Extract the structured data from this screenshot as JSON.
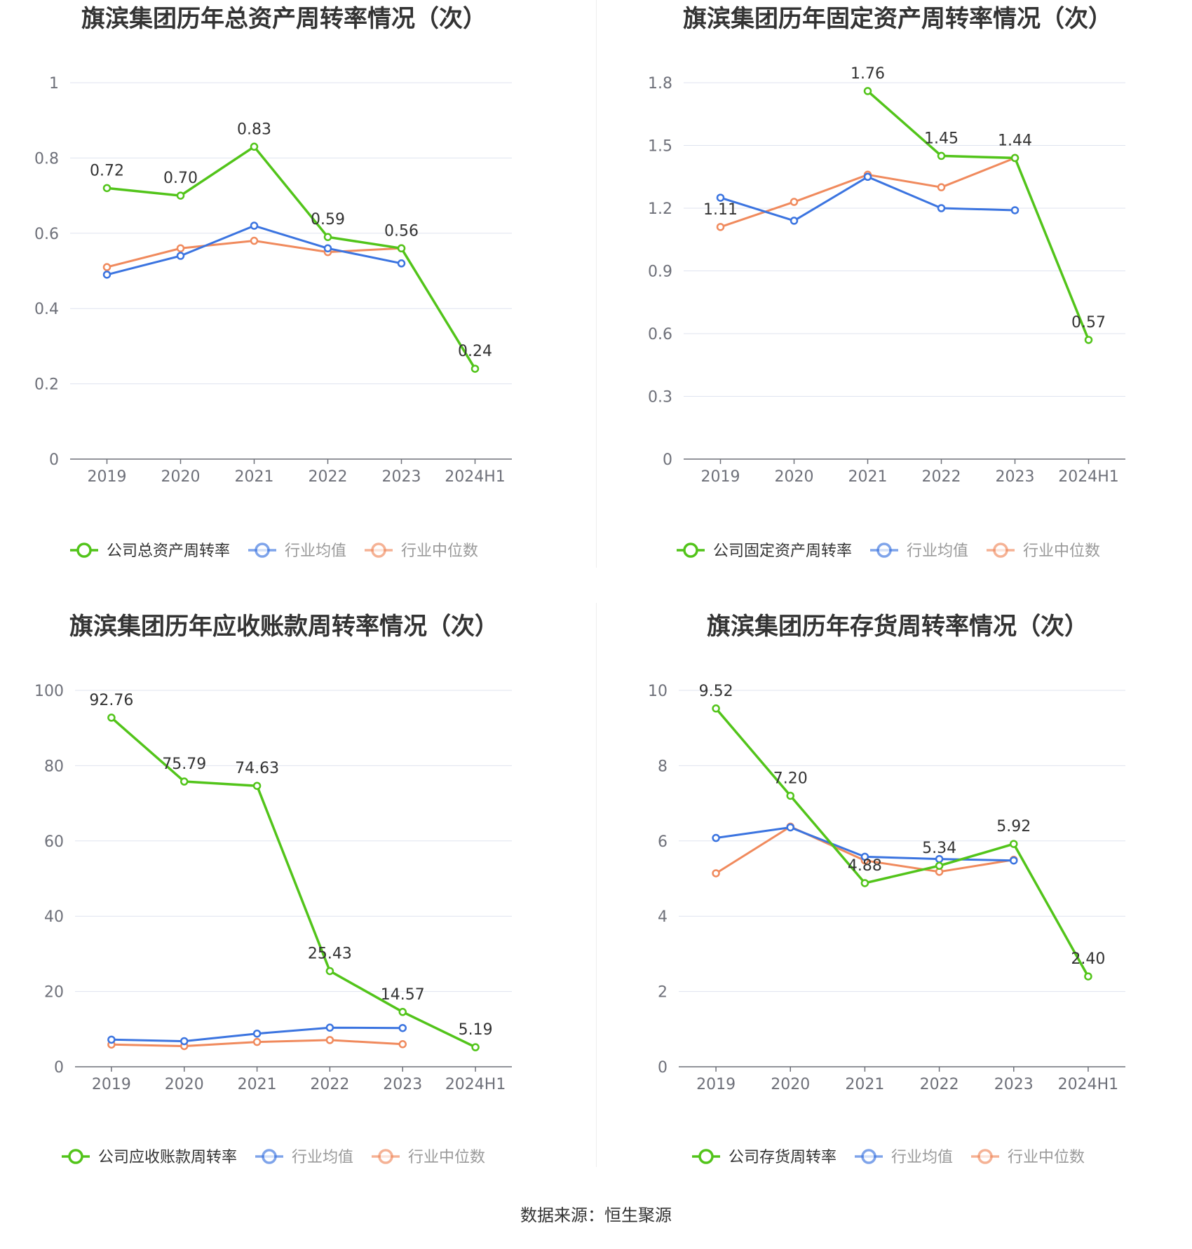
{
  "source": "数据来源：恒生聚源",
  "colors": {
    "company": "#52c41a",
    "avg": "#3b74e0",
    "median": "#f08a5d",
    "grid": "#dfe3ef",
    "axis": "#6e7079"
  },
  "chart_data": [
    {
      "type": "line",
      "title": "旗滨集团历年总资产周转率情况（次）",
      "categories": [
        "2019",
        "2020",
        "2021",
        "2022",
        "2023",
        "2024H1"
      ],
      "ylim": [
        0,
        1
      ],
      "yticks": [
        0,
        0.2,
        0.4,
        0.6,
        0.8,
        1
      ],
      "ytick_labels": [
        "0",
        "0.2",
        "0.4",
        "0.6",
        "0.8",
        "1"
      ],
      "series": [
        {
          "name": "公司总资产周转率",
          "role": "company",
          "values": [
            0.72,
            0.7,
            0.83,
            0.59,
            0.56,
            0.24
          ],
          "labels": [
            "0.72",
            "0.70",
            "0.83",
            "0.59",
            "0.56",
            "0.24"
          ]
        },
        {
          "name": "行业均值",
          "role": "avg",
          "values": [
            0.49,
            0.54,
            0.62,
            0.56,
            0.52,
            null
          ]
        },
        {
          "name": "行业中位数",
          "role": "median",
          "values": [
            0.51,
            0.56,
            0.58,
            0.55,
            0.56,
            null
          ]
        }
      ]
    },
    {
      "type": "line",
      "title": "旗滨集团历年固定资产周转率情况（次）",
      "categories": [
        "2019",
        "2020",
        "2021",
        "2022",
        "2023",
        "2024H1"
      ],
      "ylim": [
        0,
        1.8
      ],
      "yticks": [
        0,
        0.3,
        0.6,
        0.9,
        1.2,
        1.5,
        1.8
      ],
      "ytick_labels": [
        "0",
        "0.3",
        "0.6",
        "0.9",
        "1.2",
        "1.5",
        "1.8"
      ],
      "series": [
        {
          "name": "公司固定资产周转率",
          "role": "company",
          "values": [
            null,
            null,
            1.76,
            1.45,
            1.44,
            0.57
          ],
          "labels": [
            "1.11",
            null,
            "1.76",
            "1.45",
            "1.44",
            "0.57"
          ]
        },
        {
          "name": "行业均值",
          "role": "avg",
          "values": [
            1.25,
            1.14,
            1.35,
            1.2,
            1.19,
            null
          ]
        },
        {
          "name": "行业中位数",
          "role": "median",
          "values": [
            1.11,
            1.23,
            1.36,
            1.3,
            1.44,
            null
          ]
        }
      ]
    },
    {
      "type": "line",
      "title": "旗滨集团历年应收账款周转率情况（次）",
      "categories": [
        "2019",
        "2020",
        "2021",
        "2022",
        "2023",
        "2024H1"
      ],
      "ylim": [
        0,
        100
      ],
      "yticks": [
        0,
        20,
        40,
        60,
        80,
        100
      ],
      "ytick_labels": [
        "0",
        "20",
        "40",
        "60",
        "80",
        "100"
      ],
      "series": [
        {
          "name": "公司应收账款周转率",
          "role": "company",
          "values": [
            92.76,
            75.79,
            74.63,
            25.43,
            14.57,
            5.19
          ],
          "labels": [
            "92.76",
            "75.79",
            "74.63",
            "25.43",
            "14.57",
            "5.19"
          ]
        },
        {
          "name": "行业均值",
          "role": "avg",
          "values": [
            7.2,
            6.8,
            8.8,
            10.4,
            10.3,
            null
          ]
        },
        {
          "name": "行业中位数",
          "role": "median",
          "values": [
            5.9,
            5.5,
            6.6,
            7.1,
            6.0,
            null
          ]
        }
      ]
    },
    {
      "type": "line",
      "title": "旗滨集团历年存货周转率情况（次）",
      "categories": [
        "2019",
        "2020",
        "2021",
        "2022",
        "2023",
        "2024H1"
      ],
      "ylim": [
        0,
        10
      ],
      "yticks": [
        0,
        2,
        4,
        6,
        8,
        10
      ],
      "ytick_labels": [
        "0",
        "2",
        "4",
        "6",
        "8",
        "10"
      ],
      "series": [
        {
          "name": "公司存货周转率",
          "role": "company",
          "values": [
            9.52,
            7.2,
            4.88,
            5.34,
            5.92,
            2.4
          ],
          "labels": [
            "9.52",
            "7.20",
            "4.88",
            "5.34",
            "5.92",
            "2.40"
          ]
        },
        {
          "name": "行业均值",
          "role": "avg",
          "values": [
            6.08,
            6.36,
            5.58,
            5.52,
            5.48,
            null
          ]
        },
        {
          "name": "行业中位数",
          "role": "median",
          "values": [
            5.14,
            6.38,
            5.48,
            5.18,
            5.5,
            null
          ]
        }
      ]
    }
  ]
}
